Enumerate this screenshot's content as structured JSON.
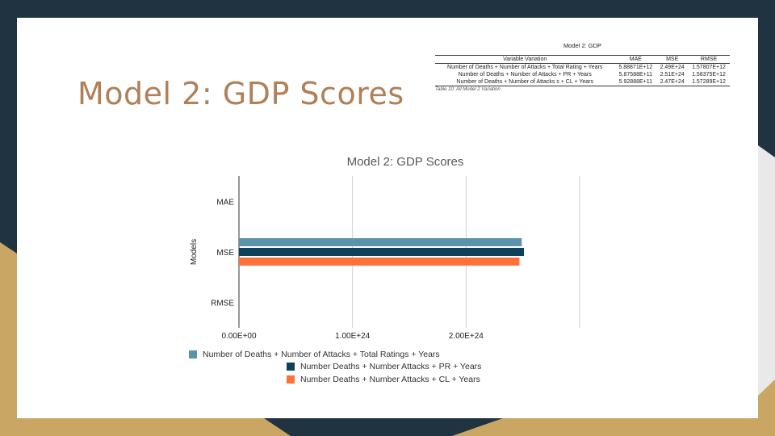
{
  "slide": {
    "title": "Model 2: GDP Scores"
  },
  "table": {
    "caption_top": "Model 2: GDP",
    "headers": [
      "Variable Variation",
      "MAE",
      "MSE",
      "RMSE"
    ],
    "rows": [
      [
        "Number of Deaths + Number of Attacks + Total Rating + Years",
        "5.88871E+12",
        "2.49E+24",
        "1.57807E+12"
      ],
      [
        "Number of Deaths + Number of Attacks + PR + Years",
        "5.87588E+11",
        "2.51E+24",
        "1.58375E+12"
      ],
      [
        "Number of Deaths + Number of Attacks s + CL + Years",
        "5.92888E+11",
        "2.47E+24",
        "1.57289E+12"
      ]
    ],
    "caption_bottom": "Table 10: All Model 2 Variation"
  },
  "chart_data": {
    "type": "bar",
    "orientation": "horizontal",
    "title": "Model 2: GDP Scores",
    "ylabel": "Models",
    "xlabel": "",
    "categories": [
      "MAE",
      "MSE",
      "RMSE"
    ],
    "x_ticks": [
      "0.00E+00",
      "1.00E+24",
      "2.00E+24"
    ],
    "xlim": [
      0,
      3e+24
    ],
    "grid": true,
    "legend_position": "bottom",
    "series": [
      {
        "name": "Number of Deaths + Number of Attacks + Total Ratings + Years",
        "color": "#5b93ad",
        "values": [
          5888710000000.0,
          2.49e+24,
          1578070000000.0
        ]
      },
      {
        "name": "Number Deaths + Number Attacks + PR + Years",
        "color": "#0f4259",
        "values": [
          587588000000.0,
          2.51e+24,
          1583750000000.0
        ]
      },
      {
        "name": "Number Deaths + Number Attacks + CL + Years",
        "color": "#ff7139",
        "values": [
          592888000000.0,
          2.47e+24,
          1572890000000.0
        ]
      }
    ]
  },
  "theme": {
    "background_dark": "#1f3440",
    "accent_gold": "#c9a663",
    "title_color": "#b08058"
  }
}
